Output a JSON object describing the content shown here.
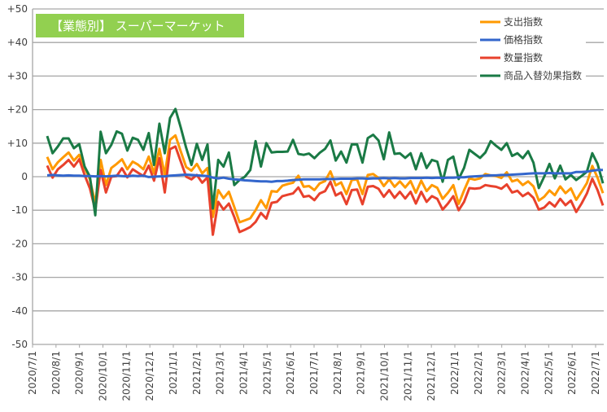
{
  "chart_data": {
    "type": "line",
    "title": "【業態別】 スーパーマーケット",
    "title_bg_color": "#92d050",
    "xlabel": "",
    "ylabel": "",
    "ylim": [
      -50,
      50
    ],
    "y_ticks": [
      "+50",
      "+40",
      "+30",
      "+20",
      "+10",
      "0",
      "-10",
      "-20",
      "-30",
      "-40",
      "-50"
    ],
    "y_tick_values": [
      50,
      40,
      30,
      20,
      10,
      0,
      -10,
      -20,
      -30,
      -40,
      -50
    ],
    "x_tick_labels": [
      "2020/7/1",
      "2020/8/1",
      "2020/9/1",
      "2020/10/1",
      "2020/11/1",
      "2020/12/1",
      "2021/1/1",
      "2021/2/1",
      "2021/3/1",
      "2021/4/1",
      "2021/5/1",
      "2021/6/1",
      "2021/7/1",
      "2021/8/1",
      "2021/9/1",
      "2021/10/1",
      "2021/11/1",
      "2021/12/1",
      "2022/1/1",
      "2022/2/1",
      "2022/3/1",
      "2022/4/1",
      "2022/5/1",
      "2022/6/1",
      "2022/7/1"
    ],
    "x_frequency": "weekly",
    "grid": true,
    "legend_position": "top-right",
    "series": [
      {
        "name": "支出指数",
        "color": "#ff9900",
        "values": [
          5.9,
          2.2,
          4.3,
          5.8,
          7.2,
          4.8,
          6.5,
          2.6,
          -0.8,
          -8,
          5,
          -2.5,
          2.6,
          3.8,
          5.2,
          2.2,
          4.5,
          3.6,
          2.2,
          6,
          1,
          8.3,
          0.6,
          11,
          12.3,
          7.5,
          2.9,
          1.8,
          3.8,
          1,
          2.6,
          -12,
          -4,
          -6.4,
          -4.5,
          -9,
          -13.6,
          -13,
          -12.4,
          -10,
          -7,
          -9.4,
          -4.3,
          -4.5,
          -2.7,
          -2.2,
          -1.8,
          0.3,
          -3,
          -2.8,
          -4,
          -2,
          -1.3,
          1.6,
          -2.6,
          -1.7,
          -5.2,
          -1,
          -0.8,
          -5.2,
          0.5,
          0.8,
          -0.4,
          -2.8,
          -0.8,
          -3,
          -1.4,
          -3.2,
          -1.3,
          -4.8,
          -1.2,
          -4.3,
          -2.5,
          -3.3,
          -6.6,
          -4.8,
          -2.5,
          -8.1,
          -4.1,
          -0.5,
          -0.9,
          -0.5,
          0.8,
          0.4,
          0.2,
          -0.4,
          1.3,
          -1.4,
          -0.9,
          -2.5,
          -1.4,
          -2.9,
          -7.1,
          -6,
          -4.1,
          -5.5,
          -2.9,
          -4.9,
          -3.5,
          -6.9,
          -4.5,
          -1.9,
          3.2,
          -0.3,
          -4.9
        ]
      },
      {
        "name": "価格指数",
        "color": "#3366cc",
        "values": [
          0.4,
          0.5,
          0.4,
          0.3,
          0.4,
          0.3,
          0.3,
          0.2,
          0.2,
          0.1,
          0.2,
          0.1,
          0.2,
          0.3,
          0.2,
          0.1,
          0.3,
          0.2,
          0.3,
          -0.1,
          0.0,
          0.1,
          0.1,
          0.3,
          0.4,
          0.5,
          0.6,
          0.5,
          0.4,
          0.3,
          0.2,
          -0.3,
          -0.5,
          -0.3,
          -0.6,
          -0.8,
          -0.9,
          -1.1,
          -1.2,
          -1.3,
          -1.4,
          -1.4,
          -1.5,
          -1.3,
          -1.3,
          -1.2,
          -1.0,
          -0.9,
          -0.8,
          -0.8,
          -0.8,
          -0.8,
          -0.7,
          -0.7,
          -0.7,
          -0.6,
          -0.6,
          -0.6,
          -0.5,
          -0.5,
          -0.6,
          -0.5,
          -0.5,
          -0.4,
          -0.5,
          -0.4,
          -0.5,
          -0.5,
          -0.4,
          -0.4,
          -0.4,
          -0.3,
          -0.4,
          -0.3,
          -0.4,
          -0.3,
          -0.3,
          -0.2,
          -0.2,
          0,
          0.1,
          0.2,
          0.3,
          0.4,
          0.4,
          0.5,
          0.5,
          0.6,
          0.7,
          0.8,
          0.9,
          1,
          1,
          1,
          1.1,
          1,
          1,
          1,
          1,
          1.4,
          1.4,
          1.5,
          1.8,
          2,
          2
        ]
      },
      {
        "name": "数量指数",
        "color": "#e8412c",
        "values": [
          3.3,
          -0.3,
          2.2,
          3.5,
          5,
          3,
          5.2,
          0.5,
          -3.5,
          -10,
          2,
          -4.7,
          0,
          0.2,
          2.5,
          -0.2,
          2.2,
          1.2,
          0.2,
          3.3,
          -1.2,
          5.5,
          -4.7,
          8.2,
          9,
          4.5,
          0,
          -0.8,
          0.5,
          -1.8,
          -0.2,
          -17.3,
          -7.5,
          -9.8,
          -8,
          -12,
          -16.5,
          -15.8,
          -15,
          -13.5,
          -10.8,
          -12.5,
          -7.8,
          -7.5,
          -5.8,
          -5.4,
          -5,
          -3.2,
          -6,
          -5.7,
          -7,
          -5,
          -4.3,
          -1.5,
          -5.6,
          -4.7,
          -8.2,
          -4,
          -3.8,
          -8.2,
          -3,
          -2.8,
          -3.6,
          -6,
          -4,
          -6.3,
          -4.5,
          -6.5,
          -4.5,
          -8,
          -4.5,
          -7.5,
          -5.8,
          -6.6,
          -9.8,
          -8,
          -5.8,
          -10,
          -7.5,
          -3.4,
          -3.6,
          -3.4,
          -2.5,
          -2.8,
          -3,
          -3.6,
          -2.3,
          -4.7,
          -4.2,
          -5.8,
          -4.8,
          -6.3,
          -9.8,
          -9.2,
          -7.6,
          -8.9,
          -6.6,
          -8.5,
          -7.1,
          -10.5,
          -8,
          -5,
          -0.6,
          -4,
          -8.6
        ]
      },
      {
        "name": "商品入替効果指数",
        "color": "#1a7a45",
        "values": [
          12.1,
          7,
          9,
          11.4,
          11.4,
          8.5,
          9.7,
          3,
          0,
          -11.5,
          13.4,
          7,
          9.5,
          13.5,
          12.8,
          7.8,
          11.6,
          11,
          8,
          13,
          3.5,
          15.8,
          7,
          17.5,
          20.2,
          14.6,
          8.6,
          3.5,
          9.8,
          5,
          9.6,
          -9.5,
          5,
          3,
          7.2,
          -2.5,
          -1,
          0,
          2,
          10.6,
          3,
          10,
          7.2,
          7.4,
          7.4,
          7.5,
          11,
          6.8,
          6.5,
          6.9,
          5.5,
          7.1,
          8.3,
          10.8,
          4.8,
          7.5,
          4.2,
          9.6,
          9.6,
          4.2,
          11.5,
          12.5,
          10.8,
          5.2,
          13.2,
          6.8,
          7,
          5.6,
          7,
          2.2,
          7,
          2.6,
          5,
          4.5,
          -1.5,
          5,
          6,
          -0.7,
          2.6,
          8,
          6.8,
          5.6,
          7.2,
          10.6,
          9.2,
          8,
          10,
          6.2,
          7,
          5.5,
          7.6,
          4.2,
          -3.4,
          0,
          3.8,
          -0.5,
          3.3,
          -0.8,
          0.5,
          -1,
          0.2,
          1.5,
          7,
          3.8,
          -2
        ]
      }
    ]
  }
}
